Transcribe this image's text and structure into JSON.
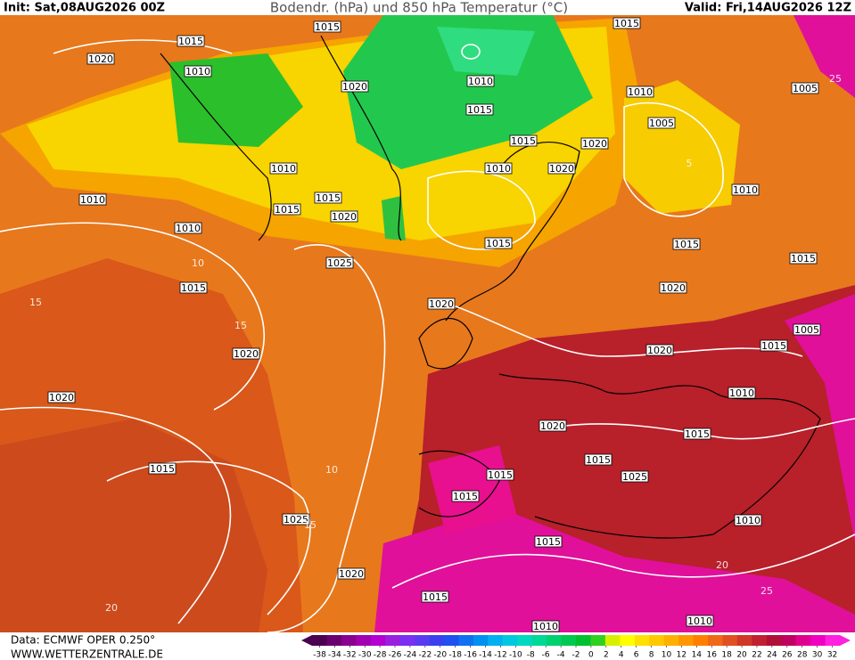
{
  "header": {
    "init": "Init: Sat,08AUG2026 00Z",
    "title": "Bodendr. (hPa) und 850 hPa Temperatur (°C)",
    "valid": "Valid: Fri,14AUG2026 12Z"
  },
  "isobar_labels": [
    "1015",
    "1020",
    "1010",
    "1015",
    "1020",
    "1010",
    "1015",
    "1015",
    "1010",
    "1005",
    "1005",
    "1015",
    "1020",
    "1010",
    "1010",
    "1020",
    "1010",
    "1010",
    "1015",
    "1015",
    "1020",
    "1010",
    "1015",
    "1015",
    "1025",
    "1015",
    "1015",
    "1020",
    "1020",
    "1005",
    "1015",
    "1020",
    "1020",
    "1010",
    "1020",
    "1020",
    "1015",
    "1015",
    "1015",
    "1025",
    "1015",
    "1015",
    "1010",
    "1025",
    "1015",
    "1020",
    "1015",
    "1010",
    "1010"
  ],
  "temperature_labels": [
    "10",
    "15",
    "15",
    "10",
    "15",
    "20",
    "25",
    "20",
    "25",
    "5"
  ],
  "footer": {
    "source": "Data: ECMWF OPER 0.250°",
    "website": "WWW.WETTERZENTRALE.DE"
  },
  "colorbar": {
    "ticks": [
      -38,
      -34,
      -32,
      -30,
      -28,
      -26,
      -24,
      -22,
      -20,
      -18,
      -16,
      -14,
      -12,
      -10,
      -8,
      -6,
      -4,
      -2,
      0,
      2,
      4,
      6,
      8,
      10,
      12,
      14,
      16,
      18,
      20,
      22,
      24,
      26,
      28,
      30,
      32
    ],
    "colors": [
      "#4b0050",
      "#6a006e",
      "#8a008f",
      "#a000b0",
      "#b400d0",
      "#9a20e0",
      "#7a30f0",
      "#5a3cf0",
      "#3a40f0",
      "#2050f0",
      "#1070f0",
      "#0090f0",
      "#00b0f0",
      "#00c8e0",
      "#00d8c0",
      "#00d898",
      "#00d070",
      "#00c850",
      "#00c030",
      "#30d020",
      "#d8f000",
      "#ffff00",
      "#ffe000",
      "#ffc800",
      "#ffb000",
      "#ff9800",
      "#ff8000",
      "#f06818",
      "#e05020",
      "#d03828",
      "#c02030",
      "#b01038",
      "#c00060",
      "#e00090",
      "#f000c0",
      "#ff20e0"
    ]
  }
}
